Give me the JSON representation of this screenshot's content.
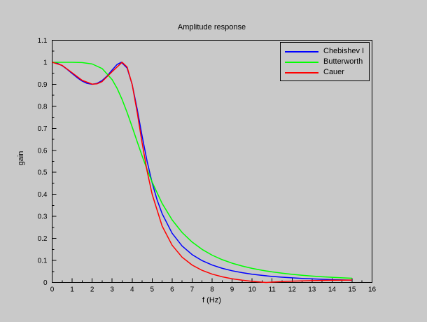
{
  "window": {
    "background": "#c9c9c9"
  },
  "chart_data": {
    "type": "line",
    "title": "Amplitude response",
    "xlabel": "f (Hz)",
    "ylabel": "gain",
    "xlim": [
      0,
      16
    ],
    "ylim": [
      0,
      1.1
    ],
    "grid": false,
    "axis_color": "#000000",
    "x_major_ticks": [
      0,
      1,
      2,
      3,
      4,
      5,
      6,
      7,
      8,
      9,
      10,
      11,
      12,
      13,
      14,
      15,
      16
    ],
    "x_major_tick_labels": [
      "0",
      "1",
      "2",
      "3",
      "4",
      "5",
      "6",
      "7",
      "8",
      "9",
      "10",
      "11",
      "12",
      "13",
      "14",
      "15",
      "16"
    ],
    "x_minor_tick_step": 0.5,
    "y_major_ticks": [
      0,
      0.1,
      0.2,
      0.3,
      0.4,
      0.5,
      0.6,
      0.7,
      0.8,
      0.9,
      1,
      1.1
    ],
    "y_major_tick_labels": [
      "0",
      "0.1",
      "0.2",
      "0.3",
      "0.4",
      "0.5",
      "0.6",
      "0.7",
      "0.8",
      "0.9",
      "1",
      "1.1"
    ],
    "y_minor_tick_step": 0.05,
    "legend": {
      "position": "top-right-inside",
      "border": true
    },
    "series": [
      {
        "name": "Chebishev I",
        "color": "#0000ff",
        "points": [
          [
            0,
            1
          ],
          [
            0.25,
            0.9959
          ],
          [
            0.5,
            0.9845
          ],
          [
            0.75,
            0.9679
          ],
          [
            1,
            0.9487
          ],
          [
            1.25,
            0.9304
          ],
          [
            1.5,
            0.9145
          ],
          [
            1.75,
            0.9039
          ],
          [
            2,
            0.9
          ],
          [
            2.25,
            0.9042
          ],
          [
            2.5,
            0.917
          ],
          [
            2.75,
            0.9379
          ],
          [
            3,
            0.9648
          ],
          [
            3.25,
            0.9902
          ],
          [
            3.46,
            1
          ],
          [
            3.75,
            0.9737
          ],
          [
            4,
            0.9
          ],
          [
            4.25,
            0.7886
          ],
          [
            4.5,
            0.6648
          ],
          [
            4.75,
            0.55
          ],
          [
            5,
            0.4531
          ],
          [
            5.25,
            0.3748
          ],
          [
            5.5,
            0.3126
          ],
          [
            6,
            0.2236
          ],
          [
            6.5,
            0.1656
          ],
          [
            7,
            0.1265
          ],
          [
            7.5,
            0.0991
          ],
          [
            8,
            0.0792
          ],
          [
            8.5,
            0.0644
          ],
          [
            9,
            0.0531
          ],
          [
            9.5,
            0.0444
          ],
          [
            10,
            0.0375
          ],
          [
            10.5,
            0.032
          ],
          [
            11,
            0.0275
          ],
          [
            11.5,
            0.0239
          ],
          [
            12,
            0.0209
          ],
          [
            12.5,
            0.0183
          ],
          [
            13,
            0.0162
          ],
          [
            13.5,
            0.0144
          ],
          [
            14,
            0.0128
          ],
          [
            14.5,
            0.0115
          ],
          [
            15,
            0.0103
          ]
        ]
      },
      {
        "name": "Butterworth",
        "color": "#00ff00",
        "points": [
          [
            0,
            1
          ],
          [
            0.5,
            1
          ],
          [
            1,
            0.9999
          ],
          [
            1.5,
            0.9986
          ],
          [
            2,
            0.9923
          ],
          [
            2.5,
            0.9715
          ],
          [
            3,
            0.9213
          ],
          [
            3.25,
            0.8813
          ],
          [
            3.5,
            0.8307
          ],
          [
            3.75,
            0.7717
          ],
          [
            4,
            0.7071
          ],
          [
            4.25,
            0.6403
          ],
          [
            4.5,
            0.5746
          ],
          [
            4.75,
            0.5127
          ],
          [
            5,
            0.4559
          ],
          [
            5.5,
            0.3591
          ],
          [
            6,
            0.2841
          ],
          [
            6.5,
            0.2269
          ],
          [
            7,
            0.1835
          ],
          [
            7.5,
            0.1501
          ],
          [
            8,
            0.124
          ],
          [
            8.5,
            0.1037
          ],
          [
            9,
            0.0875
          ],
          [
            9.5,
            0.0746
          ],
          [
            10,
            0.0639
          ],
          [
            10.5,
            0.0552
          ],
          [
            11,
            0.048
          ],
          [
            11.5,
            0.0421
          ],
          [
            12,
            0.037
          ],
          [
            12.5,
            0.0327
          ],
          [
            13,
            0.0291
          ],
          [
            13.5,
            0.026
          ],
          [
            14,
            0.0233
          ],
          [
            14.5,
            0.021
          ],
          [
            15,
            0.019
          ]
        ]
      },
      {
        "name": "Cauer",
        "color": "#ff0000",
        "points": [
          [
            0,
            1
          ],
          [
            0.5,
            0.9859
          ],
          [
            1,
            0.9524
          ],
          [
            1.5,
            0.918
          ],
          [
            2,
            0.9006
          ],
          [
            2.25,
            0.9022
          ],
          [
            2.5,
            0.9124
          ],
          [
            3,
            0.9575
          ],
          [
            3.5,
            1
          ],
          [
            3.75,
            0.9781
          ],
          [
            4,
            0.9
          ],
          [
            4.25,
            0.774
          ],
          [
            4.5,
            0.6333
          ],
          [
            4.75,
            0.5055
          ],
          [
            5,
            0.4011
          ],
          [
            5.5,
            0.2564
          ],
          [
            6,
            0.1691
          ],
          [
            6.5,
            0.1146
          ],
          [
            7,
            0.079
          ],
          [
            7.5,
            0.0549
          ],
          [
            8,
            0.0379
          ],
          [
            8.5,
            0.0258
          ],
          [
            9,
            0.0168
          ],
          [
            9.5,
            0.0102
          ],
          [
            10,
            0.0051
          ],
          [
            10.5,
            0.0013
          ],
          [
            10.7,
            0
          ],
          [
            11,
            0.0017
          ],
          [
            11.5,
            0.004
          ],
          [
            12,
            0.0058
          ],
          [
            12.5,
            0.0072
          ],
          [
            13,
            0.0083
          ],
          [
            13.5,
            0.0092
          ],
          [
            14,
            0.0099
          ],
          [
            14.5,
            0.0104
          ],
          [
            15,
            0.0108
          ]
        ]
      }
    ]
  }
}
